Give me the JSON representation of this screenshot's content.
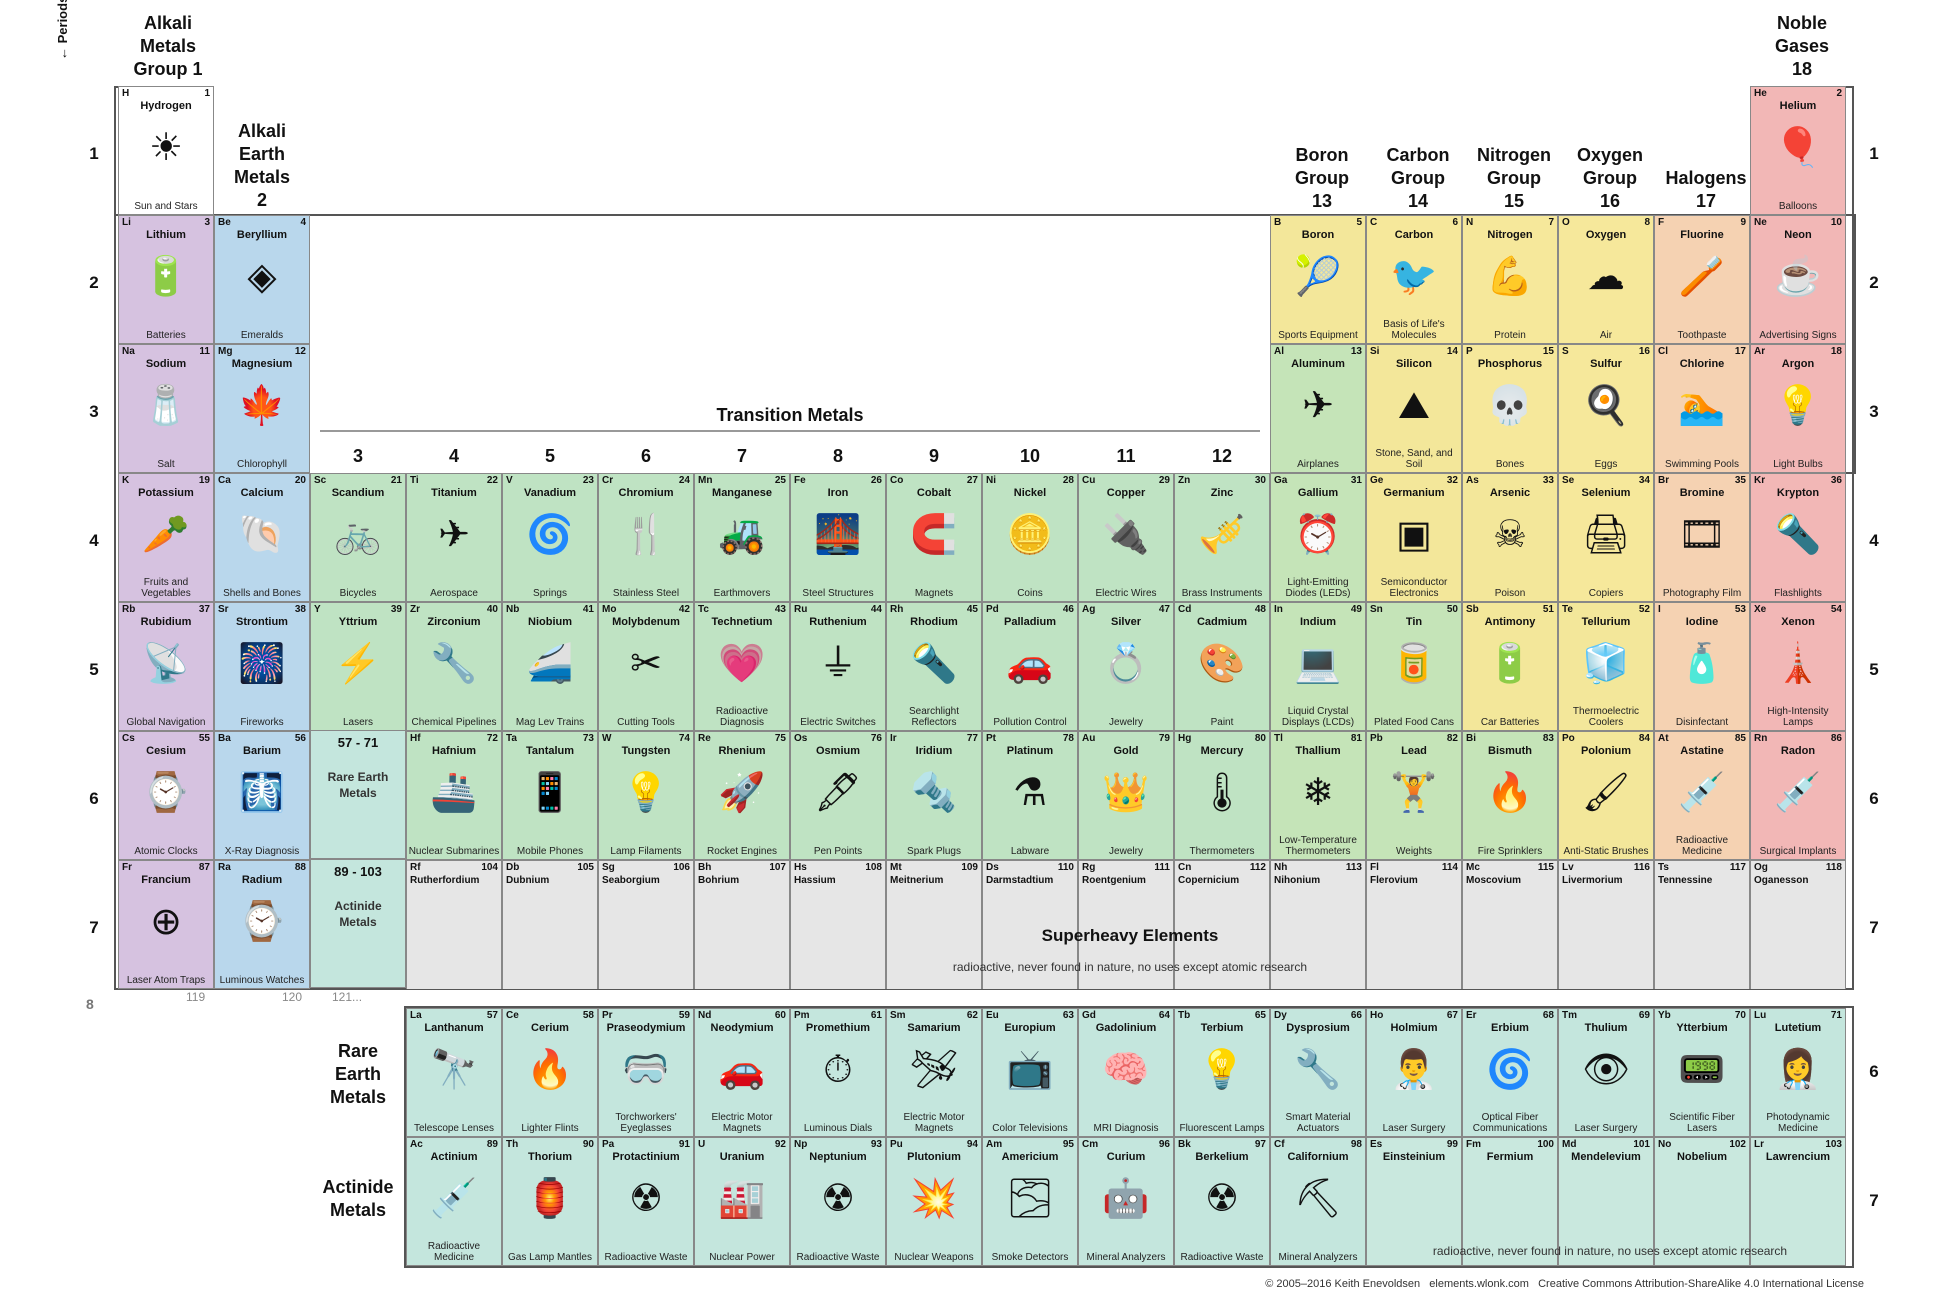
{
  "groups": {
    "g1": [
      "Alkali",
      "Metals",
      "Group 1"
    ],
    "g2": [
      "Alkali",
      "Earth",
      "Metals",
      "2"
    ],
    "g13": [
      "Boron",
      "Group",
      "13"
    ],
    "g14": [
      "Carbon",
      "Group",
      "14"
    ],
    "g15": [
      "Nitrogen",
      "Group",
      "15"
    ],
    "g16": [
      "Oxygen",
      "Group",
      "16"
    ],
    "g17": [
      "Halogens",
      "17"
    ],
    "g18": [
      "Noble",
      "Gases",
      "18"
    ]
  },
  "periods_label": "← Periods",
  "period_numbers": [
    "1",
    "2",
    "3",
    "4",
    "5",
    "6",
    "7"
  ],
  "lower_period_numbers": [
    "6",
    "7"
  ],
  "row8_label": "8",
  "row8_numbers": [
    "119",
    "120",
    "121..."
  ],
  "transition_title": "Transition Metals",
  "transition_columns": [
    "3",
    "4",
    "5",
    "6",
    "7",
    "8",
    "9",
    "10",
    "11",
    "12"
  ],
  "lanthanide_block": {
    "range": "57 - 71",
    "label": "Rare Earth Metals"
  },
  "actinide_block": {
    "range": "89 - 103",
    "label": "Actinide Metals"
  },
  "superheavy": {
    "title": "Superheavy Elements",
    "note": "radioactive, never found in nature, no uses except atomic research"
  },
  "rare_earth_label": [
    "Rare",
    "Earth",
    "Metals"
  ],
  "actinide_label": [
    "Actinide",
    "Metals"
  ],
  "actinide_note": "radioactive, never found in nature, no uses except atomic research",
  "footer": "© 2005–2016 Keith Enevoldsen   elements.wlonk.com   Creative Commons Attribution-ShareAlike 4.0 International License",
  "colors": {
    "alkali": "#d6c2e0",
    "alkaline": "#b9d7ec",
    "transition": "#bfe3c3",
    "post": "#c5e4b8",
    "metalloid": "#f3e79a",
    "nonmetal": "#f6e89b",
    "halogen": "#f5d2b2",
    "noble": "#f2b7b6",
    "lanth": "#c4e6dd",
    "actin": "#c4e6dd",
    "heavy": "#e6e6e6",
    "hydrogen": "#ffffff"
  },
  "elements": [
    {
      "s": "H",
      "n": 1,
      "name": "Hydrogen",
      "use": "Sun and Stars",
      "icon": "☀",
      "r": 1,
      "c": 1,
      "cat": "hydrogen"
    },
    {
      "s": "He",
      "n": 2,
      "name": "Helium",
      "use": "Balloons",
      "icon": "🎈",
      "r": 1,
      "c": 18,
      "cat": "noble"
    },
    {
      "s": "Li",
      "n": 3,
      "name": "Lithium",
      "use": "Batteries",
      "icon": "🔋",
      "r": 2,
      "c": 1,
      "cat": "alkali"
    },
    {
      "s": "Be",
      "n": 4,
      "name": "Beryllium",
      "use": "Emeralds",
      "icon": "◈",
      "r": 2,
      "c": 2,
      "cat": "alkaline"
    },
    {
      "s": "B",
      "n": 5,
      "name": "Boron",
      "use": "Sports Equipment",
      "icon": "🎾",
      "r": 2,
      "c": 13,
      "cat": "metalloid"
    },
    {
      "s": "C",
      "n": 6,
      "name": "Carbon",
      "use": "Basis of Life's Molecules",
      "icon": "🐦",
      "r": 2,
      "c": 14,
      "cat": "nonmetal"
    },
    {
      "s": "N",
      "n": 7,
      "name": "Nitrogen",
      "use": "Protein",
      "icon": "💪",
      "r": 2,
      "c": 15,
      "cat": "nonmetal"
    },
    {
      "s": "O",
      "n": 8,
      "name": "Oxygen",
      "use": "Air",
      "icon": "☁",
      "r": 2,
      "c": 16,
      "cat": "nonmetal"
    },
    {
      "s": "F",
      "n": 9,
      "name": "Fluorine",
      "use": "Toothpaste",
      "icon": "🪥",
      "r": 2,
      "c": 17,
      "cat": "halogen"
    },
    {
      "s": "Ne",
      "n": 10,
      "name": "Neon",
      "use": "Advertising Signs",
      "icon": "☕",
      "r": 2,
      "c": 18,
      "cat": "noble"
    },
    {
      "s": "Na",
      "n": 11,
      "name": "Sodium",
      "use": "Salt",
      "icon": "🧂",
      "r": 3,
      "c": 1,
      "cat": "alkali"
    },
    {
      "s": "Mg",
      "n": 12,
      "name": "Magnesium",
      "use": "Chlorophyll",
      "icon": "🍁",
      "r": 3,
      "c": 2,
      "cat": "alkaline"
    },
    {
      "s": "Al",
      "n": 13,
      "name": "Aluminum",
      "use": "Airplanes",
      "icon": "✈",
      "r": 3,
      "c": 13,
      "cat": "post"
    },
    {
      "s": "Si",
      "n": 14,
      "name": "Silicon",
      "use": "Stone, Sand, and Soil",
      "icon": "⛰",
      "r": 3,
      "c": 14,
      "cat": "metalloid"
    },
    {
      "s": "P",
      "n": 15,
      "name": "Phosphorus",
      "use": "Bones",
      "icon": "💀",
      "r": 3,
      "c": 15,
      "cat": "nonmetal"
    },
    {
      "s": "S",
      "n": 16,
      "name": "Sulfur",
      "use": "Eggs",
      "icon": "🍳",
      "r": 3,
      "c": 16,
      "cat": "nonmetal"
    },
    {
      "s": "Cl",
      "n": 17,
      "name": "Chlorine",
      "use": "Swimming Pools",
      "icon": "🏊",
      "r": 3,
      "c": 17,
      "cat": "halogen"
    },
    {
      "s": "Ar",
      "n": 18,
      "name": "Argon",
      "use": "Light Bulbs",
      "icon": "💡",
      "r": 3,
      "c": 18,
      "cat": "noble"
    },
    {
      "s": "K",
      "n": 19,
      "name": "Potassium",
      "use": "Fruits and Vegetables",
      "icon": "🥕",
      "r": 4,
      "c": 1,
      "cat": "alkali"
    },
    {
      "s": "Ca",
      "n": 20,
      "name": "Calcium",
      "use": "Shells and Bones",
      "icon": "🐚",
      "r": 4,
      "c": 2,
      "cat": "alkaline"
    },
    {
      "s": "Sc",
      "n": 21,
      "name": "Scandium",
      "use": "Bicycles",
      "icon": "🚲",
      "r": 4,
      "c": 3,
      "cat": "transition"
    },
    {
      "s": "Ti",
      "n": 22,
      "name": "Titanium",
      "use": "Aerospace",
      "icon": "✈",
      "r": 4,
      "c": 4,
      "cat": "transition"
    },
    {
      "s": "V",
      "n": 23,
      "name": "Vanadium",
      "use": "Springs",
      "icon": "🌀",
      "r": 4,
      "c": 5,
      "cat": "transition"
    },
    {
      "s": "Cr",
      "n": 24,
      "name": "Chromium",
      "use": "Stainless Steel",
      "icon": "🍴",
      "r": 4,
      "c": 6,
      "cat": "transition"
    },
    {
      "s": "Mn",
      "n": 25,
      "name": "Manganese",
      "use": "Earthmovers",
      "icon": "🚜",
      "r": 4,
      "c": 7,
      "cat": "transition"
    },
    {
      "s": "Fe",
      "n": 26,
      "name": "Iron",
      "use": "Steel Structures",
      "icon": "🌉",
      "r": 4,
      "c": 8,
      "cat": "transition"
    },
    {
      "s": "Co",
      "n": 27,
      "name": "Cobalt",
      "use": "Magnets",
      "icon": "🧲",
      "r": 4,
      "c": 9,
      "cat": "transition"
    },
    {
      "s": "Ni",
      "n": 28,
      "name": "Nickel",
      "use": "Coins",
      "icon": "🪙",
      "r": 4,
      "c": 10,
      "cat": "transition"
    },
    {
      "s": "Cu",
      "n": 29,
      "name": "Copper",
      "use": "Electric Wires",
      "icon": "🔌",
      "r": 4,
      "c": 11,
      "cat": "transition"
    },
    {
      "s": "Zn",
      "n": 30,
      "name": "Zinc",
      "use": "Brass Instruments",
      "icon": "🎺",
      "r": 4,
      "c": 12,
      "cat": "transition"
    },
    {
      "s": "Ga",
      "n": 31,
      "name": "Gallium",
      "use": "Light-Emitting Diodes (LEDs)",
      "icon": "⏰",
      "r": 4,
      "c": 13,
      "cat": "post"
    },
    {
      "s": "Ge",
      "n": 32,
      "name": "Germanium",
      "use": "Semiconductor Electronics",
      "icon": "▣",
      "r": 4,
      "c": 14,
      "cat": "metalloid"
    },
    {
      "s": "As",
      "n": 33,
      "name": "Arsenic",
      "use": "Poison",
      "icon": "☠",
      "r": 4,
      "c": 15,
      "cat": "metalloid"
    },
    {
      "s": "Se",
      "n": 34,
      "name": "Selenium",
      "use": "Copiers",
      "icon": "🖨",
      "r": 4,
      "c": 16,
      "cat": "nonmetal"
    },
    {
      "s": "Br",
      "n": 35,
      "name": "Bromine",
      "use": "Photography Film",
      "icon": "🎞",
      "r": 4,
      "c": 17,
      "cat": "halogen"
    },
    {
      "s": "Kr",
      "n": 36,
      "name": "Krypton",
      "use": "Flashlights",
      "icon": "🔦",
      "r": 4,
      "c": 18,
      "cat": "noble"
    },
    {
      "s": "Rb",
      "n": 37,
      "name": "Rubidium",
      "use": "Global Navigation",
      "icon": "📡",
      "r": 5,
      "c": 1,
      "cat": "alkali"
    },
    {
      "s": "Sr",
      "n": 38,
      "name": "Strontium",
      "use": "Fireworks",
      "icon": "🎆",
      "r": 5,
      "c": 2,
      "cat": "alkaline"
    },
    {
      "s": "Y",
      "n": 39,
      "name": "Yttrium",
      "use": "Lasers",
      "icon": "⚡",
      "r": 5,
      "c": 3,
      "cat": "transition"
    },
    {
      "s": "Zr",
      "n": 40,
      "name": "Zirconium",
      "use": "Chemical Pipelines",
      "icon": "🔧",
      "r": 5,
      "c": 4,
      "cat": "transition"
    },
    {
      "s": "Nb",
      "n": 41,
      "name": "Niobium",
      "use": "Mag Lev Trains",
      "icon": "🚄",
      "r": 5,
      "c": 5,
      "cat": "transition"
    },
    {
      "s": "Mo",
      "n": 42,
      "name": "Molybdenum",
      "use": "Cutting Tools",
      "icon": "✂",
      "r": 5,
      "c": 6,
      "cat": "transition"
    },
    {
      "s": "Tc",
      "n": 43,
      "name": "Technetium",
      "use": "Radioactive Diagnosis",
      "icon": "💗",
      "r": 5,
      "c": 7,
      "cat": "transition"
    },
    {
      "s": "Ru",
      "n": 44,
      "name": "Ruthenium",
      "use": "Electric Switches",
      "icon": "⏚",
      "r": 5,
      "c": 8,
      "cat": "transition"
    },
    {
      "s": "Rh",
      "n": 45,
      "name": "Rhodium",
      "use": "Searchlight Reflectors",
      "icon": "🔦",
      "r": 5,
      "c": 9,
      "cat": "transition"
    },
    {
      "s": "Pd",
      "n": 46,
      "name": "Palladium",
      "use": "Pollution Control",
      "icon": "🚗",
      "r": 5,
      "c": 10,
      "cat": "transition"
    },
    {
      "s": "Ag",
      "n": 47,
      "name": "Silver",
      "use": "Jewelry",
      "icon": "💍",
      "r": 5,
      "c": 11,
      "cat": "transition"
    },
    {
      "s": "Cd",
      "n": 48,
      "name": "Cadmium",
      "use": "Paint",
      "icon": "🎨",
      "r": 5,
      "c": 12,
      "cat": "transition"
    },
    {
      "s": "In",
      "n": 49,
      "name": "Indium",
      "use": "Liquid Crystal Displays (LCDs)",
      "icon": "💻",
      "r": 5,
      "c": 13,
      "cat": "post"
    },
    {
      "s": "Sn",
      "n": 50,
      "name": "Tin",
      "use": "Plated Food Cans",
      "icon": "🥫",
      "r": 5,
      "c": 14,
      "cat": "post"
    },
    {
      "s": "Sb",
      "n": 51,
      "name": "Antimony",
      "use": "Car Batteries",
      "icon": "🔋",
      "r": 5,
      "c": 15,
      "cat": "metalloid"
    },
    {
      "s": "Te",
      "n": 52,
      "name": "Tellurium",
      "use": "Thermoelectric Coolers",
      "icon": "🧊",
      "r": 5,
      "c": 16,
      "cat": "metalloid"
    },
    {
      "s": "I",
      "n": 53,
      "name": "Iodine",
      "use": "Disinfectant",
      "icon": "🧴",
      "r": 5,
      "c": 17,
      "cat": "halogen"
    },
    {
      "s": "Xe",
      "n": 54,
      "name": "Xenon",
      "use": "High-Intensity Lamps",
      "icon": "🗼",
      "r": 5,
      "c": 18,
      "cat": "noble"
    },
    {
      "s": "Cs",
      "n": 55,
      "name": "Cesium",
      "use": "Atomic Clocks",
      "icon": "⌚",
      "r": 6,
      "c": 1,
      "cat": "alkali"
    },
    {
      "s": "Ba",
      "n": 56,
      "name": "Barium",
      "use": "X-Ray Diagnosis",
      "icon": "🩻",
      "r": 6,
      "c": 2,
      "cat": "alkaline"
    },
    {
      "s": "Hf",
      "n": 72,
      "name": "Hafnium",
      "use": "Nuclear Submarines",
      "icon": "🚢",
      "r": 6,
      "c": 4,
      "cat": "transition"
    },
    {
      "s": "Ta",
      "n": 73,
      "name": "Tantalum",
      "use": "Mobile Phones",
      "icon": "📱",
      "r": 6,
      "c": 5,
      "cat": "transition"
    },
    {
      "s": "W",
      "n": 74,
      "name": "Tungsten",
      "use": "Lamp Filaments",
      "icon": "💡",
      "r": 6,
      "c": 6,
      "cat": "transition"
    },
    {
      "s": "Re",
      "n": 75,
      "name": "Rhenium",
      "use": "Rocket Engines",
      "icon": "🚀",
      "r": 6,
      "c": 7,
      "cat": "transition"
    },
    {
      "s": "Os",
      "n": 76,
      "name": "Osmium",
      "use": "Pen Points",
      "icon": "🖋",
      "r": 6,
      "c": 8,
      "cat": "transition"
    },
    {
      "s": "Ir",
      "n": 77,
      "name": "Iridium",
      "use": "Spark Plugs",
      "icon": "🔩",
      "r": 6,
      "c": 9,
      "cat": "transition"
    },
    {
      "s": "Pt",
      "n": 78,
      "name": "Platinum",
      "use": "Labware",
      "icon": "⚗",
      "r": 6,
      "c": 10,
      "cat": "transition"
    },
    {
      "s": "Au",
      "n": 79,
      "name": "Gold",
      "use": "Jewelry",
      "icon": "👑",
      "r": 6,
      "c": 11,
      "cat": "transition"
    },
    {
      "s": "Hg",
      "n": 80,
      "name": "Mercury",
      "use": "Thermometers",
      "icon": "🌡",
      "r": 6,
      "c": 12,
      "cat": "transition"
    },
    {
      "s": "Tl",
      "n": 81,
      "name": "Thallium",
      "use": "Low-Temperature Thermometers",
      "icon": "❄",
      "r": 6,
      "c": 13,
      "cat": "post"
    },
    {
      "s": "Pb",
      "n": 82,
      "name": "Lead",
      "use": "Weights",
      "icon": "🏋",
      "r": 6,
      "c": 14,
      "cat": "post"
    },
    {
      "s": "Bi",
      "n": 83,
      "name": "Bismuth",
      "use": "Fire Sprinklers",
      "icon": "🔥",
      "r": 6,
      "c": 15,
      "cat": "post"
    },
    {
      "s": "Po",
      "n": 84,
      "name": "Polonium",
      "use": "Anti-Static Brushes",
      "icon": "🖌",
      "r": 6,
      "c": 16,
      "cat": "metalloid"
    },
    {
      "s": "At",
      "n": 85,
      "name": "Astatine",
      "use": "Radioactive Medicine",
      "icon": "💉",
      "r": 6,
      "c": 17,
      "cat": "halogen"
    },
    {
      "s": "Rn",
      "n": 86,
      "name": "Radon",
      "use": "Surgical Implants",
      "icon": "💉",
      "r": 6,
      "c": 18,
      "cat": "noble"
    },
    {
      "s": "Fr",
      "n": 87,
      "name": "Francium",
      "use": "Laser Atom Traps",
      "icon": "⊕",
      "r": 7,
      "c": 1,
      "cat": "alkali"
    },
    {
      "s": "Ra",
      "n": 88,
      "name": "Radium",
      "use": "Luminous Watches",
      "icon": "⌚",
      "r": 7,
      "c": 2,
      "cat": "alkaline"
    }
  ],
  "superheavies": [
    {
      "s": "Rf",
      "n": 104,
      "name": "Rutherfordium",
      "c": 4
    },
    {
      "s": "Db",
      "n": 105,
      "name": "Dubnium",
      "c": 5
    },
    {
      "s": "Sg",
      "n": 106,
      "name": "Seaborgium",
      "c": 6
    },
    {
      "s": "Bh",
      "n": 107,
      "name": "Bohrium",
      "c": 7
    },
    {
      "s": "Hs",
      "n": 108,
      "name": "Hassium",
      "c": 8
    },
    {
      "s": "Mt",
      "n": 109,
      "name": "Meitnerium",
      "c": 9
    },
    {
      "s": "Ds",
      "n": 110,
      "name": "Darmstadtium",
      "c": 10
    },
    {
      "s": "Rg",
      "n": 111,
      "name": "Roentgenium",
      "c": 11
    },
    {
      "s": "Cn",
      "n": 112,
      "name": "Copernicium",
      "c": 12
    },
    {
      "s": "Nh",
      "n": 113,
      "name": "Nihonium",
      "c": 13
    },
    {
      "s": "Fl",
      "n": 114,
      "name": "Flerovium",
      "c": 14
    },
    {
      "s": "Mc",
      "n": 115,
      "name": "Moscovium",
      "c": 15
    },
    {
      "s": "Lv",
      "n": 116,
      "name": "Livermorium",
      "c": 16
    },
    {
      "s": "Ts",
      "n": 117,
      "name": "Tennessine",
      "c": 17
    },
    {
      "s": "Og",
      "n": 118,
      "name": "Oganesson",
      "c": 18
    }
  ],
  "lanthanides": [
    {
      "s": "La",
      "n": 57,
      "name": "Lanthanum",
      "use": "Telescope Lenses",
      "icon": "🔭"
    },
    {
      "s": "Ce",
      "n": 58,
      "name": "Cerium",
      "use": "Lighter Flints",
      "icon": "🔥"
    },
    {
      "s": "Pr",
      "n": 59,
      "name": "Praseodymium",
      "use": "Torchworkers' Eyeglasses",
      "icon": "🥽"
    },
    {
      "s": "Nd",
      "n": 60,
      "name": "Neodymium",
      "use": "Electric Motor Magnets",
      "icon": "🚗"
    },
    {
      "s": "Pm",
      "n": 61,
      "name": "Promethium",
      "use": "Luminous Dials",
      "icon": "⏱"
    },
    {
      "s": "Sm",
      "n": 62,
      "name": "Samarium",
      "use": "Electric Motor Magnets",
      "icon": "🛩"
    },
    {
      "s": "Eu",
      "n": 63,
      "name": "Europium",
      "use": "Color Televisions",
      "icon": "📺"
    },
    {
      "s": "Gd",
      "n": 64,
      "name": "Gadolinium",
      "use": "MRI Diagnosis",
      "icon": "🧠"
    },
    {
      "s": "Tb",
      "n": 65,
      "name": "Terbium",
      "use": "Fluorescent Lamps",
      "icon": "💡"
    },
    {
      "s": "Dy",
      "n": 66,
      "name": "Dysprosium",
      "use": "Smart Material Actuators",
      "icon": "🔧"
    },
    {
      "s": "Ho",
      "n": 67,
      "name": "Holmium",
      "use": "Laser Surgery",
      "icon": "👨‍⚕"
    },
    {
      "s": "Er",
      "n": 68,
      "name": "Erbium",
      "use": "Optical Fiber Communications",
      "icon": "🌀"
    },
    {
      "s": "Tm",
      "n": 69,
      "name": "Thulium",
      "use": "Laser Surgery",
      "icon": "👁"
    },
    {
      "s": "Yb",
      "n": 70,
      "name": "Ytterbium",
      "use": "Scientific Fiber Lasers",
      "icon": "📟"
    },
    {
      "s": "Lu",
      "n": 71,
      "name": "Lutetium",
      "use": "Photodynamic Medicine",
      "icon": "👩‍⚕"
    }
  ],
  "actinides": [
    {
      "s": "Ac",
      "n": 89,
      "name": "Actinium",
      "use": "Radioactive Medicine",
      "icon": "💉"
    },
    {
      "s": "Th",
      "n": 90,
      "name": "Thorium",
      "use": "Gas Lamp Mantles",
      "icon": "🏮"
    },
    {
      "s": "Pa",
      "n": 91,
      "name": "Protactinium",
      "use": "Radioactive Waste",
      "icon": "☢"
    },
    {
      "s": "U",
      "n": 92,
      "name": "Uranium",
      "use": "Nuclear Power",
      "icon": "🏭"
    },
    {
      "s": "Np",
      "n": 93,
      "name": "Neptunium",
      "use": "Radioactive Waste",
      "icon": "☢"
    },
    {
      "s": "Pu",
      "n": 94,
      "name": "Plutonium",
      "use": "Nuclear Weapons",
      "icon": "💥"
    },
    {
      "s": "Am",
      "n": 95,
      "name": "Americium",
      "use": "Smoke Detectors",
      "icon": "🌫"
    },
    {
      "s": "Cm",
      "n": 96,
      "name": "Curium",
      "use": "Mineral Analyzers",
      "icon": "🤖"
    },
    {
      "s": "Bk",
      "n": 97,
      "name": "Berkelium",
      "use": "Radioactive Waste",
      "icon": "☢"
    },
    {
      "s": "Cf",
      "n": 98,
      "name": "Californium",
      "use": "Mineral Analyzers",
      "icon": "⛏"
    },
    {
      "s": "Es",
      "n": 99,
      "name": "Einsteinium",
      "use": ""
    },
    {
      "s": "Fm",
      "n": 100,
      "name": "Fermium",
      "use": ""
    },
    {
      "s": "Md",
      "n": 101,
      "name": "Mendelevium",
      "use": ""
    },
    {
      "s": "No",
      "n": 102,
      "name": "Nobelium",
      "use": ""
    },
    {
      "s": "Lr",
      "n": 103,
      "name": "Lawrencium",
      "use": ""
    }
  ]
}
